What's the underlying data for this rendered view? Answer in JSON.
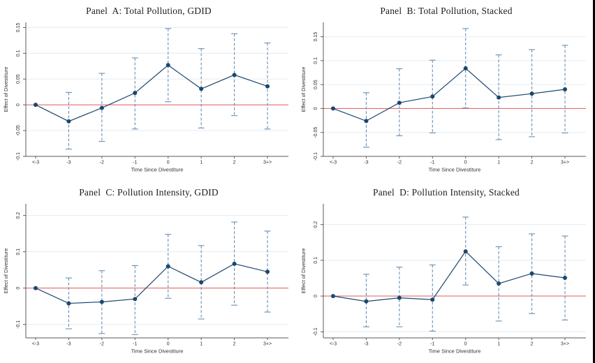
{
  "colors": {
    "marker_line": "#1a476f",
    "ci": "#6a8fb3",
    "zero_line": "#e06c6c",
    "gridline": "#e4ecf3",
    "axis": "#5a5a5a",
    "tick_text": "#303030",
    "title_text": "#1c1c1c"
  },
  "chart_data": [
    {
      "id": "A",
      "type": "line",
      "error_bars": true,
      "title": "Panel  A: Total Pollution, GDID",
      "xlabel": "Time Since Divestiture",
      "ylabel": "Effect of Divestiture",
      "categories": [
        "<-3",
        "-3",
        "-2",
        "-1",
        "0",
        "1",
        "2",
        "3+>"
      ],
      "values": [
        0,
        -0.032,
        -0.006,
        0.023,
        0.077,
        0.031,
        0.058,
        0.036
      ],
      "ci_low": [
        null,
        -0.086,
        -0.071,
        -0.047,
        0.006,
        -0.045,
        -0.021,
        -0.047
      ],
      "ci_high": [
        null,
        0.024,
        0.061,
        0.091,
        0.148,
        0.109,
        0.138,
        0.12
      ],
      "yticks": [
        -0.1,
        -0.05,
        0,
        0.05,
        0.1,
        0.15
      ],
      "ytick_labels": [
        "-0.1",
        "-0.05",
        "0",
        "0.05",
        "0.1",
        "0.15"
      ],
      "ylim": [
        -0.1,
        0.16
      ],
      "grid": true,
      "zero_line": true
    },
    {
      "id": "B",
      "type": "line",
      "error_bars": true,
      "title": "Panel  B: Total Pollution, Stacked",
      "xlabel": "Time Since Divestiture",
      "ylabel": "Effect of Divestiture",
      "categories": [
        "<-3",
        "-3",
        "-2",
        "-1",
        "0",
        "1",
        "2",
        "3+>"
      ],
      "values": [
        0,
        -0.026,
        0.012,
        0.025,
        0.084,
        0.023,
        0.031,
        0.04
      ],
      "ci_low": [
        null,
        -0.081,
        -0.057,
        -0.051,
        0.001,
        -0.065,
        -0.059,
        -0.051
      ],
      "ci_high": [
        null,
        0.033,
        0.083,
        0.101,
        0.167,
        0.112,
        0.123,
        0.132
      ],
      "yticks": [
        -0.1,
        -0.05,
        0,
        0.05,
        0.1,
        0.15
      ],
      "ytick_labels": [
        "-0.1",
        "-0.05",
        "0",
        "0.05",
        "0.1",
        "0.15"
      ],
      "ylim": [
        -0.1,
        0.18
      ],
      "grid": true,
      "zero_line": true
    },
    {
      "id": "C",
      "type": "line",
      "error_bars": true,
      "title": "Panel  C: Pollution Intensity, GDID",
      "xlabel": "Time Since Divestiture",
      "ylabel": "Effect of Divestiture",
      "categories": [
        "<-3",
        "-3",
        "-2",
        "-1",
        "0",
        "1",
        "2",
        "3+>"
      ],
      "values": [
        0,
        -0.042,
        -0.038,
        -0.03,
        0.06,
        0.016,
        0.067,
        0.045
      ],
      "ci_low": [
        null,
        -0.112,
        -0.125,
        -0.128,
        -0.028,
        -0.085,
        -0.047,
        -0.066
      ],
      "ci_high": [
        null,
        0.028,
        0.048,
        0.062,
        0.148,
        0.117,
        0.182,
        0.157
      ],
      "yticks": [
        -0.1,
        0,
        0.1,
        0.2
      ],
      "ytick_labels": [
        "-0.1",
        "0",
        "0.1",
        "0.2"
      ],
      "ylim": [
        -0.137,
        0.232
      ],
      "grid": true,
      "zero_line": true
    },
    {
      "id": "D",
      "type": "line",
      "error_bars": true,
      "title": "Panel  D: Pollution Intensity, Stacked",
      "xlabel": "Time Since Divestiture",
      "ylabel": "Effect of Divestiture",
      "categories": [
        "<-3",
        "-3",
        "-2",
        "-1",
        "0",
        "1",
        "2",
        "3+>"
      ],
      "values": [
        0,
        -0.015,
        -0.005,
        -0.01,
        0.125,
        0.035,
        0.063,
        0.051
      ],
      "ci_low": [
        null,
        -0.086,
        -0.086,
        -0.098,
        0.031,
        -0.07,
        -0.049,
        -0.067
      ],
      "ci_high": [
        null,
        0.061,
        0.081,
        0.087,
        0.221,
        0.138,
        0.174,
        0.168
      ],
      "yticks": [
        -0.1,
        0,
        0.1,
        0.2
      ],
      "ytick_labels": [
        "-0.1",
        "0",
        "0.1",
        "0.2"
      ],
      "ylim": [
        -0.117,
        0.258
      ],
      "grid": true,
      "zero_line": true
    }
  ]
}
